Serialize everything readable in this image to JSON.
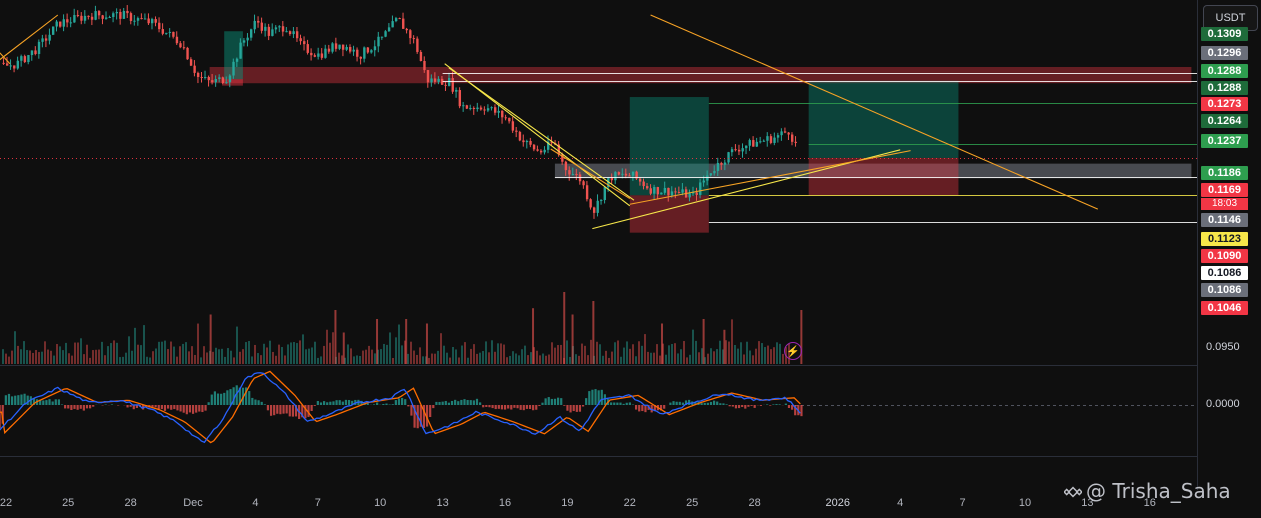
{
  "currency_button": "USDT",
  "price_labels": [
    {
      "text": "0.1309",
      "bg": "#1e6b3a",
      "fg": "#ffffff",
      "y": 0.1309
    },
    {
      "text": "0.1296",
      "bg": "#6b6f7a",
      "fg": "#ffffff",
      "y": 0.1296
    },
    {
      "text": "0.1288",
      "bg": "#2e9e4f",
      "fg": "#ffffff",
      "y": 0.1288
    },
    {
      "text": "0.1288",
      "bg": "#1e6b3a",
      "fg": "#ffffff",
      "y": 0.1288
    },
    {
      "text": "0.1273",
      "bg": "#f23645",
      "fg": "#ffffff",
      "y": 0.1273
    },
    {
      "text": "0.1264",
      "bg": "#1e6b3a",
      "fg": "#ffffff",
      "y": 0.1264
    },
    {
      "text": "0.1237",
      "bg": "#2e9e4f",
      "fg": "#ffffff",
      "y": 0.1237
    },
    {
      "text": "0.1186",
      "bg": "#2e9e4f",
      "fg": "#ffffff",
      "y": 0.1186
    },
    {
      "text": "0.1169",
      "bg": "#f23645",
      "fg": "#ffffff",
      "y": 0.1169
    },
    {
      "text": "0.1146",
      "bg": "#6b6f7a",
      "fg": "#ffffff",
      "y": 0.1146
    },
    {
      "text": "0.1123",
      "bg": "#f7e74a",
      "fg": "#131722",
      "y": 0.1123
    },
    {
      "text": "0.1090",
      "bg": "#f23645",
      "fg": "#ffffff",
      "y": 0.109
    },
    {
      "text": "0.1086",
      "bg": "#ffffff",
      "fg": "#131722",
      "y": 0.1086
    },
    {
      "text": "0.1086",
      "bg": "#6b6f7a",
      "fg": "#ffffff",
      "y": 0.1086
    },
    {
      "text": "0.1046",
      "bg": "#f23645",
      "fg": "#ffffff",
      "y": 0.1046
    }
  ],
  "countdown": "18:03",
  "axis_labels": {
    "price_low": "0.0950",
    "macd_zero": "0.0000"
  },
  "watermark": "@ Trisha_Saha",
  "chart_data": {
    "type": "candlestick",
    "symbol_quote": "USDT",
    "x_tick_labels": [
      "22",
      "25",
      "28",
      "Dec",
      "4",
      "7",
      "10",
      "13",
      "16",
      "19",
      "22",
      "25",
      "28",
      "2026",
      "4",
      "7",
      "10",
      "13",
      "16"
    ],
    "x_tick_days": [
      -9,
      -6,
      -3,
      0,
      3,
      6,
      9,
      12,
      15,
      18,
      21,
      24,
      27,
      31,
      34,
      37,
      40,
      43,
      46
    ],
    "last_price": 0.1169,
    "ylim": [
      0.0935,
      0.1345
    ],
    "key_levels": [
      0.1296,
      0.1288,
      0.1273,
      0.1264,
      0.1237,
      0.1186,
      0.1169,
      0.1146,
      0.1123,
      0.109,
      0.1086,
      0.1046
    ],
    "price_path": [
      [
        -9.5,
        0.128
      ],
      [
        -8.5,
        0.1285
      ],
      [
        -7.5,
        0.1305
      ],
      [
        -6.5,
        0.1335
      ],
      [
        -5,
        0.1345
      ],
      [
        -3.5,
        0.1345
      ],
      [
        -2,
        0.1335
      ],
      [
        -0.6,
        0.131
      ],
      [
        0.2,
        0.1268
      ],
      [
        0.8,
        0.1262
      ],
      [
        1.6,
        0.1268
      ],
      [
        2.3,
        0.131
      ],
      [
        3,
        0.1338
      ],
      [
        3.6,
        0.1322
      ],
      [
        4.4,
        0.1332
      ],
      [
        5.2,
        0.1305
      ],
      [
        6,
        0.1296
      ],
      [
        7,
        0.131
      ],
      [
        8,
        0.1296
      ],
      [
        9,
        0.1315
      ],
      [
        9.8,
        0.134
      ],
      [
        10.6,
        0.1312
      ],
      [
        11.2,
        0.1265
      ],
      [
        12.3,
        0.1263
      ],
      [
        12.9,
        0.1232
      ],
      [
        14,
        0.1232
      ],
      [
        15,
        0.1218
      ],
      [
        15.8,
        0.119
      ],
      [
        16.6,
        0.1176
      ],
      [
        17.3,
        0.1188
      ],
      [
        17.8,
        0.1158
      ],
      [
        18.6,
        0.1142
      ],
      [
        19.2,
        0.1103
      ],
      [
        20,
        0.1146
      ],
      [
        21,
        0.1148
      ],
      [
        22,
        0.113
      ],
      [
        23,
        0.1128
      ],
      [
        24,
        0.1122
      ],
      [
        24.8,
        0.1152
      ],
      [
        26,
        0.118
      ],
      [
        27,
        0.1188
      ],
      [
        28,
        0.1195
      ],
      [
        28.6,
        0.1203
      ],
      [
        29.2,
        0.1169
      ]
    ],
    "volume_spikes": [
      [
        0.8,
        0.55
      ],
      [
        6.8,
        0.6
      ],
      [
        7.2,
        0.35
      ],
      [
        8.8,
        0.5
      ],
      [
        10.2,
        0.5
      ],
      [
        11.2,
        0.45
      ],
      [
        16.3,
        0.62
      ],
      [
        17.8,
        0.8
      ],
      [
        18.2,
        0.55
      ],
      [
        19.2,
        0.7
      ],
      [
        22.5,
        0.45
      ],
      [
        24.5,
        0.5
      ],
      [
        25.5,
        0.38
      ],
      [
        29.2,
        0.6
      ]
    ],
    "rects": [
      {
        "kind": "supply",
        "x0": 0.8,
        "x1": 48.0,
        "y0": 0.1261,
        "y1": 0.1281,
        "color": "#f23645"
      },
      {
        "kind": "range",
        "x0": 17.4,
        "x1": 48.0,
        "y0": 0.1144,
        "y1": 0.1162,
        "color": "#787b86"
      },
      {
        "kind": "long-profit",
        "x0": 21.0,
        "x1": 24.8,
        "y0": 0.1123,
        "y1": 0.1244,
        "color": "#089981"
      },
      {
        "kind": "long-stop",
        "x0": 21.0,
        "x1": 24.8,
        "y0": 0.1077,
        "y1": 0.1123,
        "color": "#f23645"
      },
      {
        "kind": "long-profit",
        "x0": 29.6,
        "x1": 36.8,
        "y0": 0.1169,
        "y1": 0.1264,
        "color": "#089981"
      },
      {
        "kind": "long-stop",
        "x0": 29.6,
        "x1": 36.8,
        "y0": 0.1123,
        "y1": 0.1169,
        "color": "#f23645"
      },
      {
        "kind": "small-green",
        "x0": 1.5,
        "x1": 2.4,
        "y0": 0.1266,
        "y1": 0.1325,
        "color": "#089981"
      },
      {
        "kind": "small-red",
        "x0": 1.4,
        "x1": 2.4,
        "y0": 0.1258,
        "y1": 0.1266,
        "color": "#f23645"
      }
    ],
    "hlines": [
      {
        "y": 0.1273,
        "x0": 12.0,
        "color": "#ffffff"
      },
      {
        "y": 0.1264,
        "x0": 12.0,
        "color": "#ffffff"
      },
      {
        "y": 0.1237,
        "x0": 24.8,
        "color": "#2e9e4f"
      },
      {
        "y": 0.1186,
        "x0": 29.6,
        "color": "#2e9e4f"
      },
      {
        "y": 0.1169,
        "x0": -10,
        "color": "#f23645",
        "dotted": true
      },
      {
        "y": 0.1146,
        "x0": 17.4,
        "color": "#ffffff"
      },
      {
        "y": 0.1123,
        "x0": 24.8,
        "color": "#f7e74a"
      },
      {
        "y": 0.109,
        "x0": 24.8,
        "color": "#ffffff"
      }
    ],
    "trendlines": [
      {
        "x0": -10,
        "y0": 0.1276,
        "x1": -6.5,
        "y1": 0.1345,
        "color": "#f7a325"
      },
      {
        "x0": -10,
        "y0": 0.1318,
        "x1": -8.8,
        "y1": 0.1285,
        "color": "#f7a325"
      },
      {
        "x0": 22.0,
        "y0": 0.1345,
        "x1": 43.5,
        "y1": 0.1106,
        "color": "#f7a325"
      },
      {
        "x0": 12.1,
        "y0": 0.1285,
        "x1": 21.0,
        "y1": 0.111,
        "color": "#f7e74a"
      },
      {
        "x0": 12.3,
        "y0": 0.128,
        "x1": 21.2,
        "y1": 0.1117,
        "color": "#f7e74a"
      },
      {
        "x0": 19.2,
        "y0": 0.1082,
        "x1": 34.0,
        "y1": 0.1179,
        "color": "#f7e74a"
      },
      {
        "x0": 17.2,
        "y0": 0.118,
        "x1": 21.0,
        "y1": 0.1119,
        "color": "#f7a325"
      },
      {
        "x0": 21.0,
        "y0": 0.1112,
        "x1": 34.5,
        "y1": 0.1178,
        "color": "#f7a325"
      }
    ],
    "macd_path": [
      [
        -9.5,
        -0.6
      ],
      [
        -8,
        0.05
      ],
      [
        -6.5,
        0.35
      ],
      [
        -5,
        0.05
      ],
      [
        -3.5,
        0.1
      ],
      [
        -2,
        -0.1
      ],
      [
        -0.8,
        -0.35
      ],
      [
        0.5,
        -0.8
      ],
      [
        1.5,
        -0.25
      ],
      [
        2.5,
        0.55
      ],
      [
        3.3,
        0.7
      ],
      [
        4.5,
        0.2
      ],
      [
        5.5,
        -0.35
      ],
      [
        6.5,
        -0.2
      ],
      [
        8,
        0.05
      ],
      [
        9.5,
        0.15
      ],
      [
        10.2,
        0.35
      ],
      [
        11.2,
        -0.6
      ],
      [
        12.5,
        -0.4
      ],
      [
        13.6,
        -0.15
      ],
      [
        15,
        -0.35
      ],
      [
        16.5,
        -0.6
      ],
      [
        17.6,
        -0.25
      ],
      [
        18.6,
        -0.55
      ],
      [
        19.6,
        0.1
      ],
      [
        21,
        0.2
      ],
      [
        22.5,
        -0.2
      ],
      [
        24,
        0.05
      ],
      [
        25.5,
        0.25
      ],
      [
        27,
        0.1
      ],
      [
        28.5,
        0.15
      ],
      [
        29.2,
        -0.15
      ]
    ]
  }
}
